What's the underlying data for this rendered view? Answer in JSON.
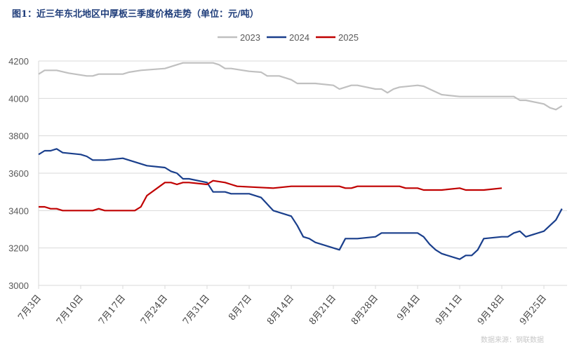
{
  "title": "图1：近三年东北地区中厚板三季度价格走势（单位：元/吨）",
  "source": "数据来源：钢联数据",
  "chart_data": {
    "type": "line",
    "title": "图1：近三年东北地区中厚板三季度价格走势（单位：元/吨）",
    "xlabel": "",
    "ylabel": "",
    "ylim": [
      3000,
      4200
    ],
    "yticks": [
      3000,
      3200,
      3400,
      3600,
      3800,
      4000,
      4200
    ],
    "xlim": [
      "07-03",
      "09-28"
    ],
    "xtick_labels": [
      "7月3日",
      "7月10日",
      "7月17日",
      "7月24日",
      "7月31日",
      "8月7日",
      "8月14日",
      "8月21日",
      "8月28日",
      "9月4日",
      "9月11日",
      "9月18日",
      "9月25日"
    ],
    "xtick_dates": [
      "07-03",
      "07-10",
      "07-17",
      "07-24",
      "07-31",
      "08-07",
      "08-14",
      "08-21",
      "08-28",
      "09-04",
      "09-11",
      "09-18",
      "09-25"
    ],
    "grid": "horizontal",
    "legend": "top-center",
    "series": [
      {
        "name": "2023",
        "color": "#c0c0c0",
        "points": [
          [
            "07-03",
            4130
          ],
          [
            "07-04",
            4150
          ],
          [
            "07-06",
            4150
          ],
          [
            "07-08",
            4135
          ],
          [
            "07-11",
            4120
          ],
          [
            "07-12",
            4120
          ],
          [
            "07-13",
            4130
          ],
          [
            "07-17",
            4130
          ],
          [
            "07-18",
            4140
          ],
          [
            "07-20",
            4150
          ],
          [
            "07-24",
            4160
          ],
          [
            "07-26",
            4180
          ],
          [
            "07-27",
            4190
          ],
          [
            "08-01",
            4190
          ],
          [
            "08-02",
            4180
          ],
          [
            "08-03",
            4160
          ],
          [
            "08-04",
            4160
          ],
          [
            "08-07",
            4145
          ],
          [
            "08-09",
            4140
          ],
          [
            "08-10",
            4120
          ],
          [
            "08-12",
            4120
          ],
          [
            "08-14",
            4100
          ],
          [
            "08-15",
            4080
          ],
          [
            "08-18",
            4080
          ],
          [
            "08-21",
            4070
          ],
          [
            "08-22",
            4050
          ],
          [
            "08-24",
            4070
          ],
          [
            "08-25",
            4070
          ],
          [
            "08-28",
            4050
          ],
          [
            "08-29",
            4050
          ],
          [
            "08-30",
            4030
          ],
          [
            "08-31",
            4050
          ],
          [
            "09-01",
            4060
          ],
          [
            "09-04",
            4070
          ],
          [
            "09-05",
            4065
          ],
          [
            "09-06",
            4050
          ],
          [
            "09-08",
            4020
          ],
          [
            "09-11",
            4010
          ],
          [
            "09-20",
            4010
          ],
          [
            "09-21",
            3990
          ],
          [
            "09-22",
            3990
          ],
          [
            "09-25",
            3970
          ],
          [
            "09-26",
            3950
          ],
          [
            "09-27",
            3940
          ],
          [
            "09-28",
            3960
          ]
        ]
      },
      {
        "name": "2024",
        "color": "#1a3f8c",
        "points": [
          [
            "07-03",
            3700
          ],
          [
            "07-04",
            3720
          ],
          [
            "07-05",
            3720
          ],
          [
            "07-06",
            3730
          ],
          [
            "07-07",
            3710
          ],
          [
            "07-10",
            3700
          ],
          [
            "07-11",
            3690
          ],
          [
            "07-12",
            3670
          ],
          [
            "07-14",
            3670
          ],
          [
            "07-17",
            3680
          ],
          [
            "07-21",
            3640
          ],
          [
            "07-24",
            3630
          ],
          [
            "07-25",
            3610
          ],
          [
            "07-26",
            3600
          ],
          [
            "07-27",
            3570
          ],
          [
            "07-28",
            3570
          ],
          [
            "07-31",
            3550
          ],
          [
            "08-01",
            3500
          ],
          [
            "08-03",
            3500
          ],
          [
            "08-04",
            3490
          ],
          [
            "08-07",
            3490
          ],
          [
            "08-09",
            3470
          ],
          [
            "08-11",
            3400
          ],
          [
            "08-14",
            3370
          ],
          [
            "08-15",
            3320
          ],
          [
            "08-16",
            3260
          ],
          [
            "08-17",
            3250
          ],
          [
            "08-18",
            3230
          ],
          [
            "08-22",
            3190
          ],
          [
            "08-23",
            3250
          ],
          [
            "08-25",
            3250
          ],
          [
            "08-28",
            3260
          ],
          [
            "08-29",
            3280
          ],
          [
            "09-04",
            3280
          ],
          [
            "09-05",
            3260
          ],
          [
            "09-06",
            3220
          ],
          [
            "09-07",
            3190
          ],
          [
            "09-08",
            3170
          ],
          [
            "09-11",
            3140
          ],
          [
            "09-12",
            3160
          ],
          [
            "09-13",
            3160
          ],
          [
            "09-14",
            3190
          ],
          [
            "09-15",
            3250
          ],
          [
            "09-18",
            3260
          ],
          [
            "09-19",
            3260
          ],
          [
            "09-20",
            3280
          ],
          [
            "09-21",
            3290
          ],
          [
            "09-22",
            3260
          ],
          [
            "09-25",
            3290
          ],
          [
            "09-27",
            3350
          ],
          [
            "09-28",
            3410
          ]
        ]
      },
      {
        "name": "2025",
        "color": "#c00000",
        "points": [
          [
            "07-03",
            3420
          ],
          [
            "07-04",
            3420
          ],
          [
            "07-05",
            3410
          ],
          [
            "07-06",
            3410
          ],
          [
            "07-07",
            3400
          ],
          [
            "07-12",
            3400
          ],
          [
            "07-13",
            3410
          ],
          [
            "07-14",
            3400
          ],
          [
            "07-19",
            3400
          ],
          [
            "07-20",
            3420
          ],
          [
            "07-21",
            3480
          ],
          [
            "07-24",
            3550
          ],
          [
            "07-25",
            3550
          ],
          [
            "07-26",
            3540
          ],
          [
            "07-27",
            3550
          ],
          [
            "07-28",
            3550
          ],
          [
            "07-31",
            3540
          ],
          [
            "08-01",
            3560
          ],
          [
            "08-03",
            3550
          ],
          [
            "08-04",
            3540
          ],
          [
            "08-05",
            3530
          ],
          [
            "08-11",
            3520
          ],
          [
            "08-14",
            3530
          ],
          [
            "08-22",
            3530
          ],
          [
            "08-23",
            3520
          ],
          [
            "08-24",
            3520
          ],
          [
            "08-25",
            3530
          ],
          [
            "09-01",
            3530
          ],
          [
            "09-02",
            3520
          ],
          [
            "09-04",
            3520
          ],
          [
            "09-05",
            3510
          ],
          [
            "09-08",
            3510
          ],
          [
            "09-11",
            3520
          ],
          [
            "09-12",
            3510
          ],
          [
            "09-15",
            3510
          ],
          [
            "09-18",
            3520
          ]
        ]
      }
    ]
  }
}
